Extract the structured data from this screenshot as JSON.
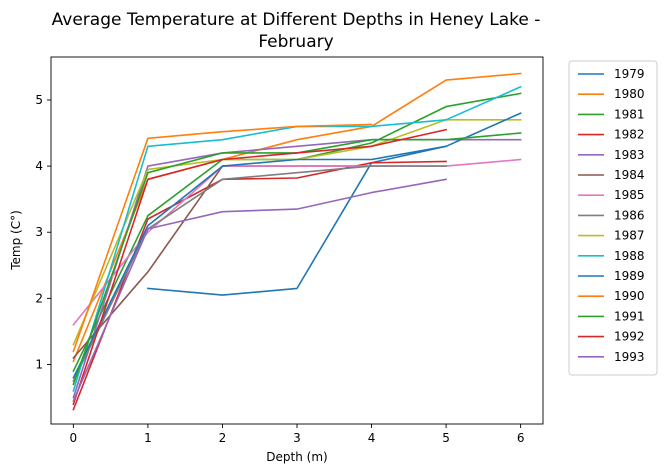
{
  "chart_data": {
    "type": "line",
    "title_line1": "Average Temperature at Different Depths in Heney Lake -",
    "title_line2": "February",
    "xlabel": "Depth (m)",
    "ylabel": "Temp (C°)",
    "xlim": [
      -0.3,
      6.3
    ],
    "ylim": [
      0.1,
      5.65
    ],
    "xticks": [
      0,
      1,
      2,
      3,
      4,
      5,
      6
    ],
    "yticks": [
      1,
      2,
      3,
      4,
      5
    ],
    "grid": false,
    "legend_position": "outside-right",
    "series": [
      {
        "name": "1979",
        "color": "#1f77b4",
        "x": [
          1,
          2,
          3,
          4,
          5
        ],
        "y": [
          2.15,
          2.05,
          2.15,
          4.05,
          4.3
        ]
      },
      {
        "name": "1980",
        "color": "#ff7f0e",
        "x": [
          0,
          1,
          2,
          3,
          4,
          5,
          6
        ],
        "y": [
          1.05,
          3.8,
          4.1,
          4.4,
          4.6,
          5.3,
          5.4
        ]
      },
      {
        "name": "1981",
        "color": "#2ca02c",
        "x": [
          0,
          1,
          2,
          3,
          4,
          5,
          6
        ],
        "y": [
          0.9,
          3.25,
          4.1,
          4.1,
          4.35,
          4.9,
          5.1
        ]
      },
      {
        "name": "1982",
        "color": "#d62728",
        "x": [
          0,
          1,
          2,
          3,
          4,
          5
        ],
        "y": [
          0.32,
          3.2,
          3.8,
          3.82,
          4.05,
          4.07
        ]
      },
      {
        "name": "1983",
        "color": "#9467bd",
        "x": [
          0,
          1,
          2,
          3,
          4,
          5,
          6
        ],
        "y": [
          0.5,
          4.0,
          4.2,
          4.3,
          4.4,
          4.4,
          4.4
        ]
      },
      {
        "name": "1984",
        "color": "#8c564b",
        "x": [
          0,
          1,
          2,
          3,
          4
        ],
        "y": [
          1.1,
          2.4,
          4.0,
          4.0,
          4.0
        ]
      },
      {
        "name": "1985",
        "color": "#e377c2",
        "x": [
          0,
          1,
          2,
          3,
          4,
          5,
          6
        ],
        "y": [
          1.6,
          3.0,
          4.0,
          4.0,
          4.0,
          4.0,
          4.1
        ]
      },
      {
        "name": "1986",
        "color": "#7f7f7f",
        "x": [
          0,
          1,
          2,
          3,
          4,
          5
        ],
        "y": [
          0.75,
          3.05,
          3.8,
          3.9,
          4.0,
          4.0
        ]
      },
      {
        "name": "1987",
        "color": "#bcbd22",
        "x": [
          0,
          1,
          2,
          3,
          4,
          5,
          6
        ],
        "y": [
          1.3,
          3.95,
          4.1,
          4.1,
          4.3,
          4.7,
          4.7
        ]
      },
      {
        "name": "1988",
        "color": "#17becf",
        "x": [
          0,
          1,
          2,
          3,
          4,
          5,
          6
        ],
        "y": [
          0.6,
          4.3,
          4.4,
          4.6,
          4.6,
          4.7,
          5.2
        ]
      },
      {
        "name": "1989",
        "color": "#1f77b4",
        "x": [
          0,
          1,
          2,
          3,
          4,
          5,
          6
        ],
        "y": [
          0.8,
          3.1,
          4.0,
          4.1,
          4.1,
          4.3,
          4.8
        ]
      },
      {
        "name": "1990",
        "color": "#ff7f0e",
        "x": [
          0,
          1,
          2,
          3,
          4
        ],
        "y": [
          1.2,
          4.42,
          4.52,
          4.6,
          4.63
        ]
      },
      {
        "name": "1991",
        "color": "#2ca02c",
        "x": [
          0,
          1,
          2,
          3,
          4,
          5,
          6
        ],
        "y": [
          0.7,
          3.9,
          4.2,
          4.2,
          4.4,
          4.4,
          4.5
        ]
      },
      {
        "name": "1992",
        "color": "#d62728",
        "x": [
          0,
          1,
          2,
          3,
          4,
          5
        ],
        "y": [
          0.4,
          3.8,
          4.1,
          4.2,
          4.3,
          4.55
        ]
      },
      {
        "name": "1993",
        "color": "#9467bd",
        "x": [
          0,
          1,
          2,
          3,
          4,
          5
        ],
        "y": [
          0.45,
          3.05,
          3.31,
          3.35,
          3.6,
          3.8
        ]
      }
    ]
  }
}
